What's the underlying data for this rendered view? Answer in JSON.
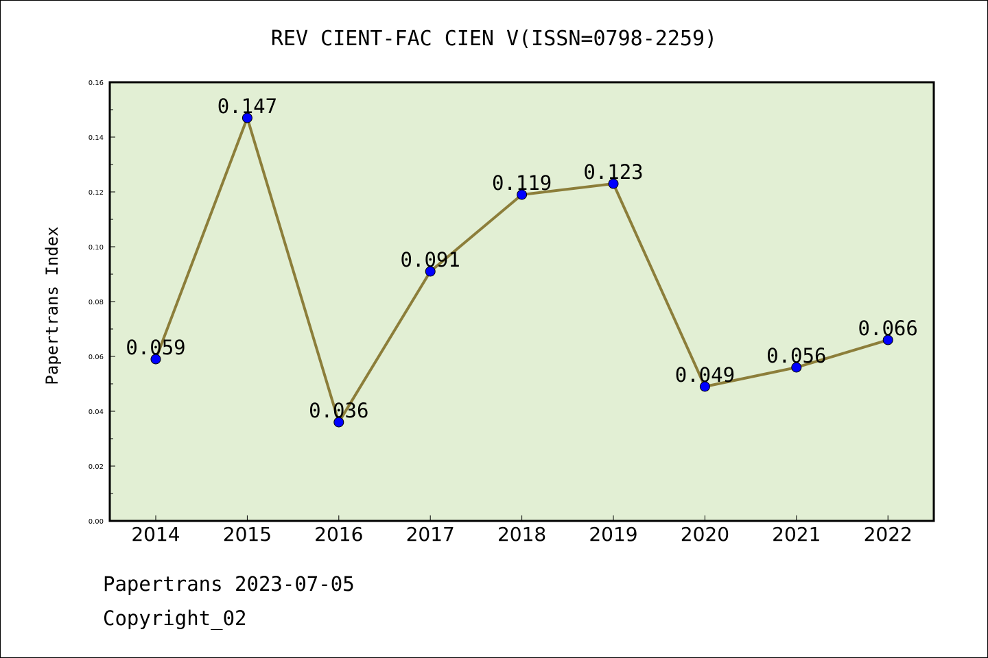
{
  "chart_data": {
    "type": "line",
    "title": "REV CIENT-FAC CIEN V(ISSN=0798-2259)",
    "xlabel": "",
    "ylabel": "Papertrans Index",
    "categories": [
      "2014",
      "2015",
      "2016",
      "2017",
      "2018",
      "2019",
      "2020",
      "2021",
      "2022"
    ],
    "values": [
      0.059,
      0.147,
      0.036,
      0.091,
      0.119,
      0.123,
      0.049,
      0.056,
      0.066
    ],
    "data_labels": [
      "0.059",
      "0.147",
      "0.036",
      "0.091",
      "0.119",
      "0.123",
      "0.049",
      "0.056",
      "0.066"
    ],
    "ylim": [
      0,
      0.16
    ],
    "yticks": [
      "0.00",
      "0.02",
      "0.04",
      "0.06",
      "0.08",
      "0.10",
      "0.12",
      "0.14",
      "0.16"
    ],
    "grid": false,
    "legend": "none",
    "colors": {
      "plot_background": "#e2efd4",
      "line": "#8c7e3a",
      "marker": "#0000ff"
    }
  },
  "footer": {
    "date_line": "Papertrans 2023-07-05",
    "copyright_line": "Copyright_02"
  }
}
